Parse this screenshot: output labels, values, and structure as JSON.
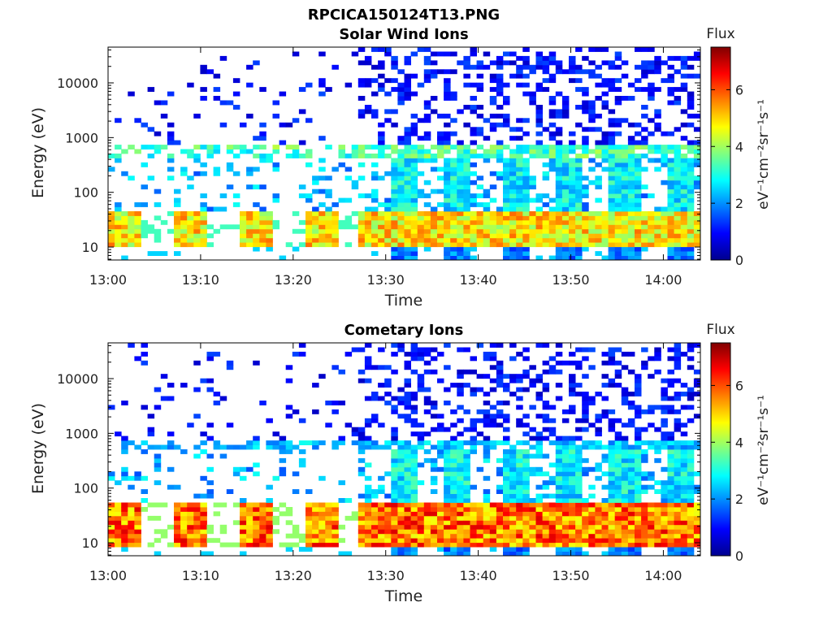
{
  "figure": {
    "title": "RPCICA150124T13.PNG"
  },
  "chart_data": [
    {
      "type": "heatmap",
      "title": "Solar Wind Ions",
      "xlabel": "Time",
      "ylabel": "Energy (eV)",
      "y_scale": "log",
      "ylim": [
        5.8,
        45000
      ],
      "xlim": [
        "13:00",
        "14:04"
      ],
      "x_ticks": [
        "13:00",
        "13:10",
        "13:20",
        "13:30",
        "13:40",
        "13:50",
        "14:00"
      ],
      "y_ticks": [
        "10",
        "100",
        "1000",
        "10000"
      ],
      "colorbar": {
        "title": "Flux",
        "label": "eV⁻¹cm⁻²sr⁻¹s⁻¹",
        "range": [
          0,
          7.5
        ],
        "ticks": [
          "0",
          "2",
          "4",
          "6"
        ],
        "colormap": "jet"
      },
      "grid": false,
      "description_of_features": {
        "core_energy_eV": [
          15,
          35
        ],
        "core_flux": 5.5,
        "secondary_band_energy_eV": [
          400,
          700
        ],
        "secondary_flux": 3.5,
        "high_energy_sparse_flux": 1.0
      }
    },
    {
      "type": "heatmap",
      "title": "Cometary Ions",
      "xlabel": "Time",
      "ylabel": "Energy (eV)",
      "y_scale": "log",
      "ylim": [
        5.8,
        45000
      ],
      "xlim": [
        "13:00",
        "14:04"
      ],
      "x_ticks": [
        "13:00",
        "13:10",
        "13:20",
        "13:30",
        "13:40",
        "13:50",
        "14:00"
      ],
      "y_ticks": [
        "10",
        "100",
        "1000",
        "10000"
      ],
      "colorbar": {
        "title": "Flux",
        "label": "eV⁻¹cm⁻²sr⁻¹s⁻¹",
        "range": [
          0,
          7.5
        ],
        "ticks": [
          "0",
          "2",
          "4",
          "6"
        ],
        "colormap": "jet"
      },
      "grid": false,
      "description_of_features": {
        "core_energy_eV": [
          12,
          40
        ],
        "core_flux": 6.5,
        "secondary_band_energy_eV": [
          500,
          700
        ],
        "secondary_flux": 2.5,
        "high_energy_sparse_flux": 1.0
      }
    }
  ]
}
